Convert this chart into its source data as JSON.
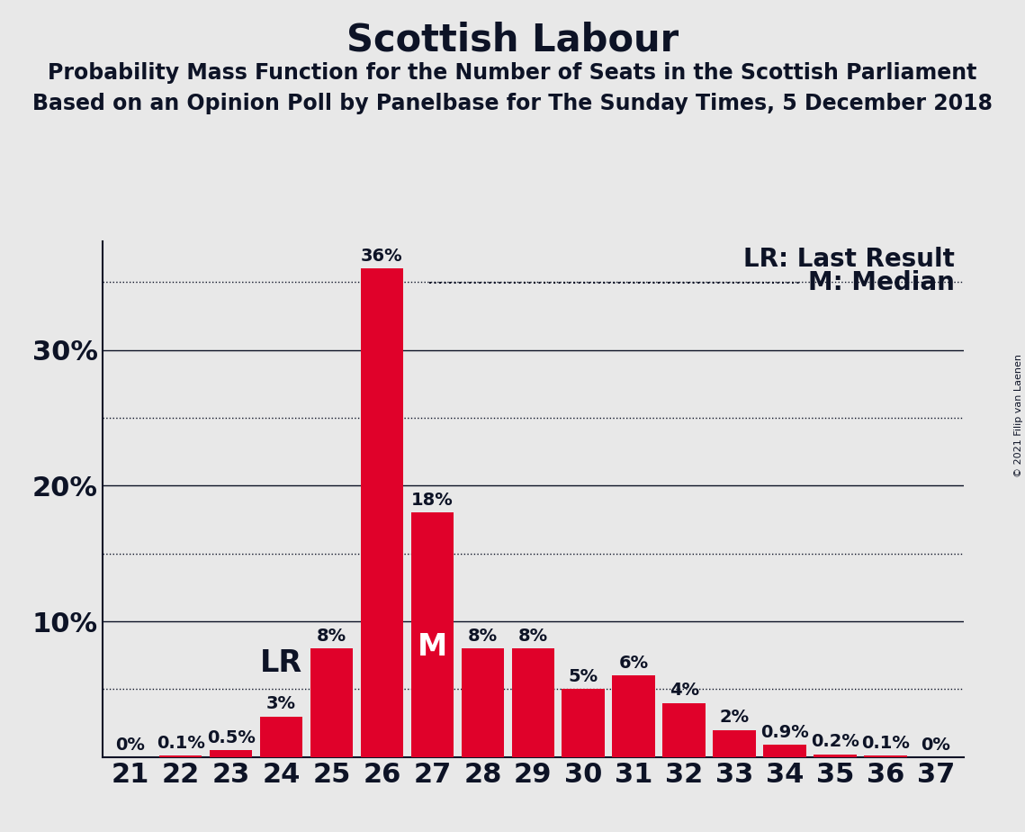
{
  "title": "Scottish Labour",
  "subtitle1": "Probability Mass Function for the Number of Seats in the Scottish Parliament",
  "subtitle2": "Based on an Opinion Poll by Panelbase for The Sunday Times, 5 December 2018",
  "copyright": "© 2021 Filip van Laenen",
  "categories": [
    21,
    22,
    23,
    24,
    25,
    26,
    27,
    28,
    29,
    30,
    31,
    32,
    33,
    34,
    35,
    36,
    37
  ],
  "values": [
    0.0,
    0.1,
    0.5,
    3.0,
    8.0,
    36.0,
    18.0,
    8.0,
    8.0,
    5.0,
    6.0,
    4.0,
    2.0,
    0.9,
    0.2,
    0.1,
    0.0
  ],
  "labels": [
    "0%",
    "0.1%",
    "0.5%",
    "3%",
    "8%",
    "36%",
    "18%",
    "8%",
    "8%",
    "5%",
    "6%",
    "4%",
    "2%",
    "0.9%",
    "0.2%",
    "0.1%",
    "0%"
  ],
  "bar_color": "#E0012A",
  "background_color": "#E8E8E8",
  "last_result": 24,
  "median": 27,
  "ylim": [
    0,
    38
  ],
  "solid_gridlines": [
    10,
    20,
    30
  ],
  "dotted_gridlines": [
    5,
    15,
    25,
    35
  ],
  "ytick_positions": [
    10,
    20,
    30
  ],
  "ytick_labels": [
    "10%",
    "20%",
    "30%"
  ],
  "title_fontsize": 30,
  "subtitle_fontsize": 17,
  "axis_tick_fontsize": 22,
  "bar_label_fontsize": 14,
  "legend_fontsize": 20,
  "lr_fontsize": 24,
  "m_fontsize": 24
}
